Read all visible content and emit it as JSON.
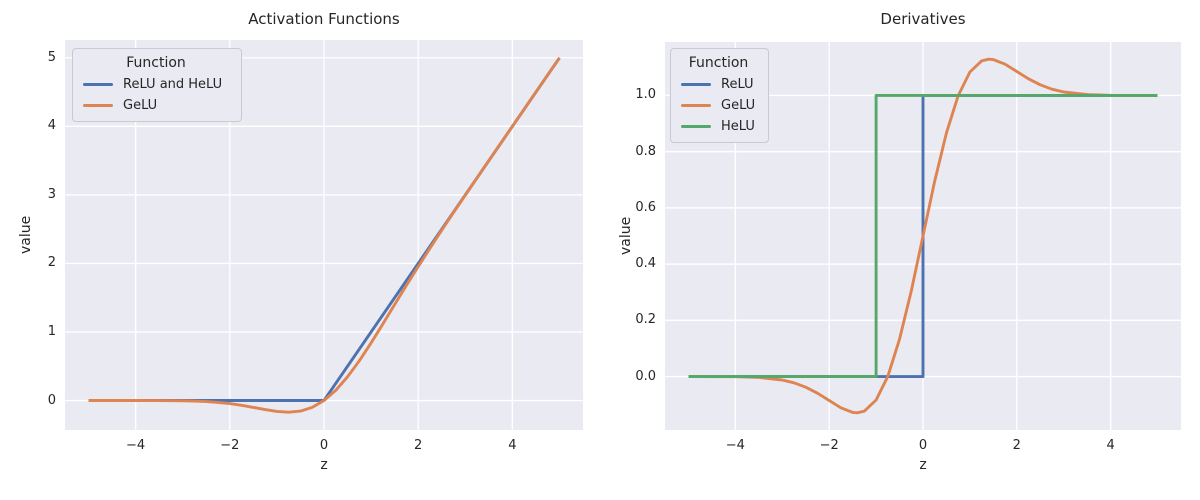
{
  "figure": {
    "background": "#ffffff",
    "axes_background": "#EAEAF2",
    "grid_color": "#ffffff",
    "text_color": "#262626"
  },
  "palette": {
    "blue": "#4C72B0",
    "orange": "#DD8452",
    "green": "#55A868"
  },
  "chart_data": [
    {
      "type": "line",
      "title": "Activation Functions",
      "xlabel": "z",
      "ylabel": "value",
      "xlim": [
        -5.5,
        5.5
      ],
      "ylim": [
        -0.43,
        5.26
      ],
      "grid": true,
      "xticks": [
        {
          "value": -4,
          "label": "−4"
        },
        {
          "value": -2,
          "label": "−2"
        },
        {
          "value": 0,
          "label": "0"
        },
        {
          "value": 2,
          "label": "2"
        },
        {
          "value": 4,
          "label": "4"
        }
      ],
      "yticks": [
        {
          "value": 0,
          "label": "0"
        },
        {
          "value": 1,
          "label": "1"
        },
        {
          "value": 2,
          "label": "2"
        },
        {
          "value": 3,
          "label": "3"
        },
        {
          "value": 4,
          "label": "4"
        },
        {
          "value": 5,
          "label": "5"
        }
      ],
      "legend": {
        "title": "Function",
        "position": "upper left",
        "entries": [
          {
            "label": "ReLU and HeLU",
            "color": "#4C72B0"
          },
          {
            "label": "GeLU",
            "color": "#DD8452"
          }
        ]
      },
      "series": [
        {
          "name": "ReLU and HeLU",
          "color": "#4C72B0",
          "points": [
            [
              -5,
              0
            ],
            [
              0,
              0
            ],
            [
              5,
              5
            ]
          ]
        },
        {
          "name": "GeLU",
          "color": "#DD8452",
          "points": [
            [
              -5,
              0
            ],
            [
              -4.5,
              0
            ],
            [
              -4,
              -0.0001
            ],
            [
              -3.5,
              -0.0008
            ],
            [
              -3,
              -0.004
            ],
            [
              -2.75,
              -0.0082
            ],
            [
              -2.5,
              -0.0155
            ],
            [
              -2.25,
              -0.0275
            ],
            [
              -2,
              -0.0455
            ],
            [
              -1.75,
              -0.0701
            ],
            [
              -1.5,
              -0.1002
            ],
            [
              -1.25,
              -0.1321
            ],
            [
              -1,
              -0.1587
            ],
            [
              -0.75,
              -0.17
            ],
            [
              -0.5,
              -0.1543
            ],
            [
              -0.25,
              -0.1003
            ],
            [
              0,
              0
            ],
            [
              0.25,
              0.1497
            ],
            [
              0.5,
              0.3457
            ],
            [
              0.75,
              0.58
            ],
            [
              1,
              0.8413
            ],
            [
              1.25,
              1.1179
            ],
            [
              1.5,
              1.3998
            ],
            [
              1.75,
              1.6799
            ],
            [
              2,
              1.9545
            ],
            [
              2.25,
              2.2225
            ],
            [
              2.5,
              2.4845
            ],
            [
              2.75,
              2.7418
            ],
            [
              3,
              2.996
            ],
            [
              3.5,
              3.4992
            ],
            [
              4,
              3.9999
            ],
            [
              4.5,
              4.5
            ],
            [
              5,
              5
            ]
          ]
        }
      ]
    },
    {
      "type": "line",
      "title": "Derivatives",
      "xlabel": "z",
      "ylabel": "value",
      "xlim": [
        -5.5,
        5.5
      ],
      "ylim": [
        -0.19,
        1.19
      ],
      "grid": true,
      "xticks": [
        {
          "value": -4,
          "label": "−4"
        },
        {
          "value": -2,
          "label": "−2"
        },
        {
          "value": 0,
          "label": "0"
        },
        {
          "value": 2,
          "label": "2"
        },
        {
          "value": 4,
          "label": "4"
        }
      ],
      "yticks": [
        {
          "value": 0.0,
          "label": "0.0"
        },
        {
          "value": 0.2,
          "label": "0.2"
        },
        {
          "value": 0.4,
          "label": "0.4"
        },
        {
          "value": 0.6,
          "label": "0.6"
        },
        {
          "value": 0.8,
          "label": "0.8"
        },
        {
          "value": 1.0,
          "label": "1.0"
        }
      ],
      "legend": {
        "title": "Function",
        "position": "upper left",
        "entries": [
          {
            "label": "ReLU",
            "color": "#4C72B0"
          },
          {
            "label": "GeLU",
            "color": "#DD8452"
          },
          {
            "label": "HeLU",
            "color": "#55A868"
          }
        ]
      },
      "series": [
        {
          "name": "ReLU",
          "color": "#4C72B0",
          "points": [
            [
              -5,
              0
            ],
            [
              0,
              0
            ],
            [
              0,
              1
            ],
            [
              5,
              1
            ]
          ]
        },
        {
          "name": "GeLU",
          "color": "#DD8452",
          "points": [
            [
              -5,
              0
            ],
            [
              -4,
              -0.0005
            ],
            [
              -3.5,
              -0.0028
            ],
            [
              -3,
              -0.012
            ],
            [
              -2.75,
              -0.022
            ],
            [
              -2.5,
              -0.0376
            ],
            [
              -2.25,
              -0.0592
            ],
            [
              -2,
              -0.0852
            ],
            [
              -1.75,
              -0.1109
            ],
            [
              -1.5,
              -0.1275
            ],
            [
              -1.4,
              -0.1289
            ],
            [
              -1.25,
              -0.1227
            ],
            [
              -1,
              -0.0833
            ],
            [
              -0.75,
              0.0008
            ],
            [
              -0.5,
              0.1325
            ],
            [
              -0.25,
              0.3046
            ],
            [
              0,
              0.5
            ],
            [
              0.25,
              0.6954
            ],
            [
              0.5,
              0.8675
            ],
            [
              0.75,
              0.9992
            ],
            [
              1,
              1.0833
            ],
            [
              1.25,
              1.1227
            ],
            [
              1.4,
              1.1289
            ],
            [
              1.5,
              1.1275
            ],
            [
              1.75,
              1.1109
            ],
            [
              2,
              1.0852
            ],
            [
              2.25,
              1.0592
            ],
            [
              2.5,
              1.0376
            ],
            [
              2.75,
              1.022
            ],
            [
              3,
              1.012
            ],
            [
              3.5,
              1.0028
            ],
            [
              4,
              1.0005
            ],
            [
              4.5,
              1.0001
            ],
            [
              5,
              1
            ]
          ]
        },
        {
          "name": "HeLU",
          "color": "#55A868",
          "points": [
            [
              -5,
              0
            ],
            [
              -1,
              0
            ],
            [
              -1,
              1
            ],
            [
              5,
              1
            ]
          ]
        }
      ]
    }
  ]
}
